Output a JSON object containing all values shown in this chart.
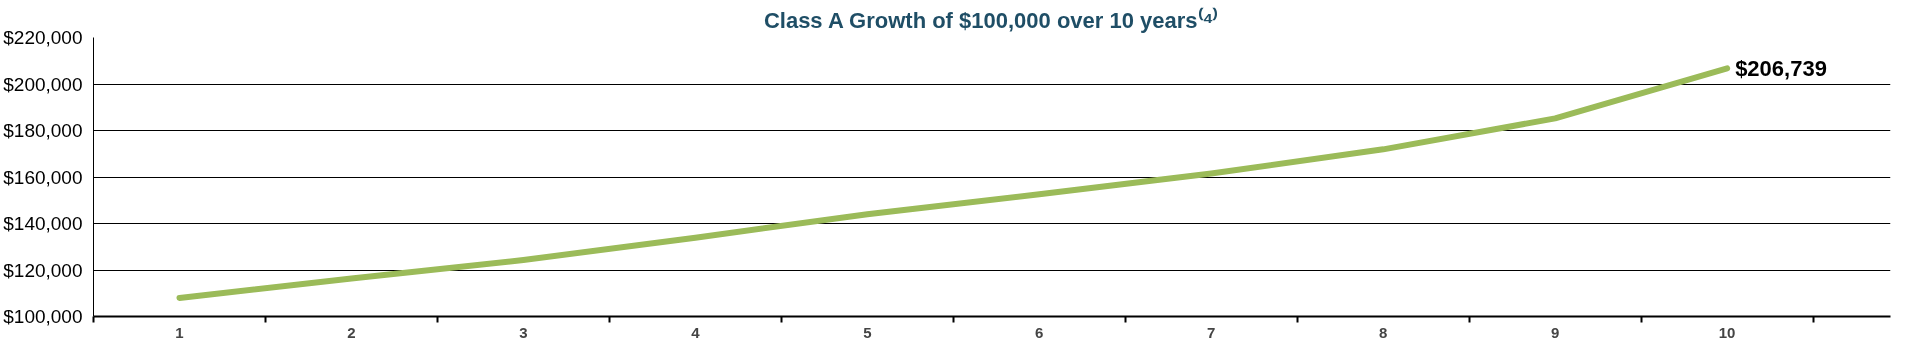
{
  "chart_data": {
    "type": "line",
    "title": "Class A Growth of $100,000 over 10 years⁽⁴⁾",
    "categories": [
      "1",
      "2",
      "3",
      "4",
      "5",
      "6",
      "7",
      "8",
      "9",
      "10"
    ],
    "series": [
      {
        "color": "#9bbb59",
        "values": [
          108000,
          116300,
          124300,
          133900,
          144000,
          152600,
          161500,
          171900,
          185200,
          206739
        ],
        "value_labels": [
          null,
          null,
          null,
          null,
          null,
          null,
          null,
          null,
          null,
          "$206,739"
        ]
      }
    ],
    "ylim": [
      100000,
      220000
    ],
    "yticks": [
      {
        "value": 100000,
        "label": "$100,000"
      },
      {
        "value": 120000,
        "label": "$120,000"
      },
      {
        "value": 140000,
        "label": "$140,000"
      },
      {
        "value": 160000,
        "label": "$160,000"
      },
      {
        "value": 180000,
        "label": "$180,000"
      },
      {
        "value": 200000,
        "label": "$200,000"
      },
      {
        "value": 220000,
        "label": "$220,000"
      }
    ],
    "grid": "y",
    "marker": "none",
    "line_style": "solid"
  }
}
